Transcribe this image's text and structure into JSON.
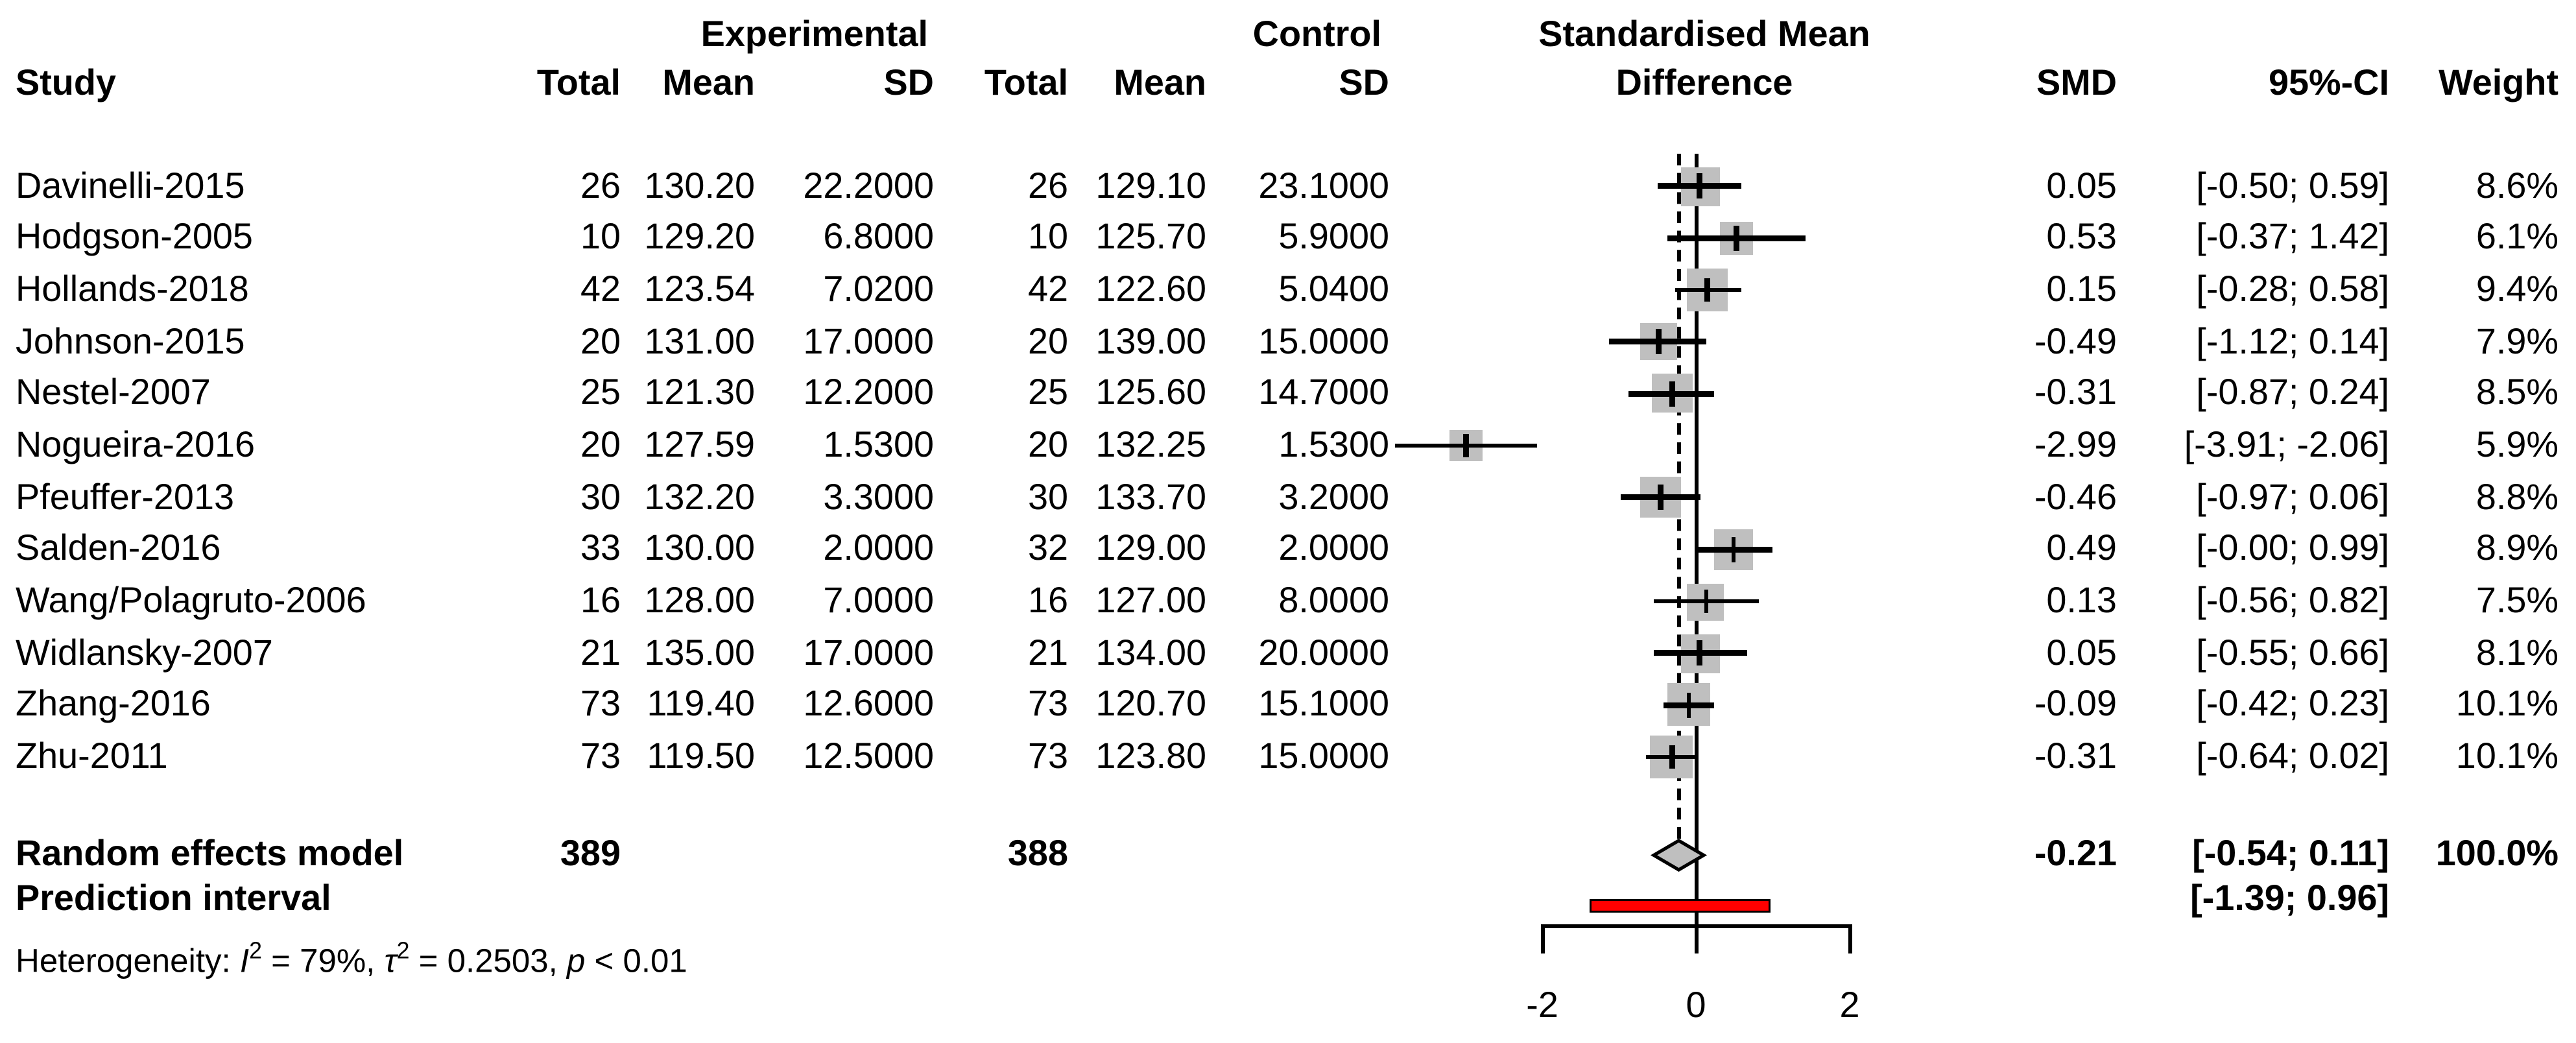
{
  "header": {
    "study": "Study",
    "experimental": "Experimental",
    "control": "Control",
    "smd_group_line1": "Standardised Mean",
    "smd_group_line2": "Difference",
    "total": "Total",
    "mean": "Mean",
    "sd": "SD",
    "smd": "SMD",
    "ci": "95%-CI",
    "weight": "Weight"
  },
  "chart_data": {
    "type": "forest",
    "effect_measure": "Standardised Mean Difference (SMD)",
    "x_ticks": [
      -2,
      0,
      2
    ],
    "x_tick_labels": [
      "-2",
      "0",
      "2"
    ],
    "axis_range": [
      -2,
      2
    ],
    "zero_line_x": 0,
    "pooled_dashed_line_x": -0.21,
    "studies": [
      {
        "name": "Davinelli-2015",
        "exp_total": "26",
        "exp_mean": "130.20",
        "exp_sd": "22.2000",
        "ctrl_total": "26",
        "ctrl_mean": "129.10",
        "ctrl_sd": "23.1000",
        "smd": 0.05,
        "ci_lo": -0.5,
        "ci_hi": 0.59,
        "smd_label": "0.05",
        "ci_label": "[-0.50; 0.59]",
        "weight": 8.6,
        "weight_label": "8.6%"
      },
      {
        "name": "Hodgson-2005",
        "exp_total": "10",
        "exp_mean": "129.20",
        "exp_sd": "6.8000",
        "ctrl_total": "10",
        "ctrl_mean": "125.70",
        "ctrl_sd": "5.9000",
        "smd": 0.53,
        "ci_lo": -0.37,
        "ci_hi": 1.42,
        "smd_label": "0.53",
        "ci_label": "[-0.37; 1.42]",
        "weight": 6.1,
        "weight_label": "6.1%"
      },
      {
        "name": "Hollands-2018",
        "exp_total": "42",
        "exp_mean": "123.54",
        "exp_sd": "7.0200",
        "ctrl_total": "42",
        "ctrl_mean": "122.60",
        "ctrl_sd": "5.0400",
        "smd": 0.15,
        "ci_lo": -0.28,
        "ci_hi": 0.58,
        "smd_label": "0.15",
        "ci_label": "[-0.28; 0.58]",
        "weight": 9.4,
        "weight_label": "9.4%"
      },
      {
        "name": "Johnson-2015",
        "exp_total": "20",
        "exp_mean": "131.00",
        "exp_sd": "17.0000",
        "ctrl_total": "20",
        "ctrl_mean": "139.00",
        "ctrl_sd": "15.0000",
        "smd": -0.49,
        "ci_lo": -1.12,
        "ci_hi": 0.14,
        "smd_label": "-0.49",
        "ci_label": "[-1.12; 0.14]",
        "weight": 7.9,
        "weight_label": "7.9%"
      },
      {
        "name": "Nestel-2007",
        "exp_total": "25",
        "exp_mean": "121.30",
        "exp_sd": "12.2000",
        "ctrl_total": "25",
        "ctrl_mean": "125.60",
        "ctrl_sd": "14.7000",
        "smd": -0.31,
        "ci_lo": -0.87,
        "ci_hi": 0.24,
        "smd_label": "-0.31",
        "ci_label": "[-0.87; 0.24]",
        "weight": 8.5,
        "weight_label": "8.5%"
      },
      {
        "name": "Nogueira-2016",
        "exp_total": "20",
        "exp_mean": "127.59",
        "exp_sd": "1.5300",
        "ctrl_total": "20",
        "ctrl_mean": "132.25",
        "ctrl_sd": "1.5300",
        "smd": -2.99,
        "ci_lo": -3.91,
        "ci_hi": -2.06,
        "smd_label": "-2.99",
        "ci_label": "[-3.91; -2.06]",
        "weight": 5.9,
        "weight_label": "5.9%"
      },
      {
        "name": "Pfeuffer-2013",
        "exp_total": "30",
        "exp_mean": "132.20",
        "exp_sd": "3.3000",
        "ctrl_total": "30",
        "ctrl_mean": "133.70",
        "ctrl_sd": "3.2000",
        "smd": -0.46,
        "ci_lo": -0.97,
        "ci_hi": 0.06,
        "smd_label": "-0.46",
        "ci_label": "[-0.97; 0.06]",
        "weight": 8.8,
        "weight_label": "8.8%"
      },
      {
        "name": "Salden-2016",
        "exp_total": "33",
        "exp_mean": "130.00",
        "exp_sd": "2.0000",
        "ctrl_total": "32",
        "ctrl_mean": "129.00",
        "ctrl_sd": "2.0000",
        "smd": 0.49,
        "ci_lo": -0.0,
        "ci_hi": 0.99,
        "smd_label": "0.49",
        "ci_label": "[-0.00; 0.99]",
        "weight": 8.9,
        "weight_label": "8.9%"
      },
      {
        "name": "Wang/Polagruto-2006",
        "exp_total": "16",
        "exp_mean": "128.00",
        "exp_sd": "7.0000",
        "ctrl_total": "16",
        "ctrl_mean": "127.00",
        "ctrl_sd": "8.0000",
        "smd": 0.13,
        "ci_lo": -0.56,
        "ci_hi": 0.82,
        "smd_label": "0.13",
        "ci_label": "[-0.56; 0.82]",
        "weight": 7.5,
        "weight_label": "7.5%"
      },
      {
        "name": "Widlansky-2007",
        "exp_total": "21",
        "exp_mean": "135.00",
        "exp_sd": "17.0000",
        "ctrl_total": "21",
        "ctrl_mean": "134.00",
        "ctrl_sd": "20.0000",
        "smd": 0.05,
        "ci_lo": -0.55,
        "ci_hi": 0.66,
        "smd_label": "0.05",
        "ci_label": "[-0.55; 0.66]",
        "weight": 8.1,
        "weight_label": "8.1%"
      },
      {
        "name": "Zhang-2016",
        "exp_total": "73",
        "exp_mean": "119.40",
        "exp_sd": "12.6000",
        "ctrl_total": "73",
        "ctrl_mean": "120.70",
        "ctrl_sd": "15.1000",
        "smd": -0.09,
        "ci_lo": -0.42,
        "ci_hi": 0.23,
        "smd_label": "-0.09",
        "ci_label": "[-0.42; 0.23]",
        "weight": 10.1,
        "weight_label": "10.1%"
      },
      {
        "name": "Zhu-2011",
        "exp_total": "73",
        "exp_mean": "119.50",
        "exp_sd": "12.5000",
        "ctrl_total": "73",
        "ctrl_mean": "123.80",
        "ctrl_sd": "15.0000",
        "smd": -0.31,
        "ci_lo": -0.64,
        "ci_hi": 0.02,
        "smd_label": "-0.31",
        "ci_label": "[-0.64; 0.02]",
        "weight": 10.1,
        "weight_label": "10.1%"
      }
    ],
    "pooled": {
      "label": "Random effects model",
      "exp_total": "389",
      "ctrl_total": "388",
      "smd": -0.21,
      "ci_lo": -0.54,
      "ci_hi": 0.11,
      "smd_label": "-0.21",
      "ci_label": "[-0.54; 0.11]",
      "weight_label": "100.0%"
    },
    "prediction_interval": {
      "label": "Prediction interval",
      "lo": -1.39,
      "hi": 0.96,
      "ci_label": "[-1.39; 0.96]"
    },
    "heterogeneity_parts": [
      {
        "text": "Heterogeneity: "
      },
      {
        "text": "I",
        "style": "italic"
      },
      {
        "text": "2",
        "style": "sup"
      },
      {
        "text": " = 79%, "
      },
      {
        "text": "τ",
        "style": "italic"
      },
      {
        "text": "2",
        "style": "sup"
      },
      {
        "text": " = 0.2503, "
      },
      {
        "text": "p",
        "style": "italic"
      },
      {
        "text": " < 0.01"
      }
    ],
    "colors": {
      "square": "#bfbfbf",
      "diamond_fill": "#bfbfbf",
      "prediction_bar": "#ff0000",
      "line": "#000000"
    }
  }
}
